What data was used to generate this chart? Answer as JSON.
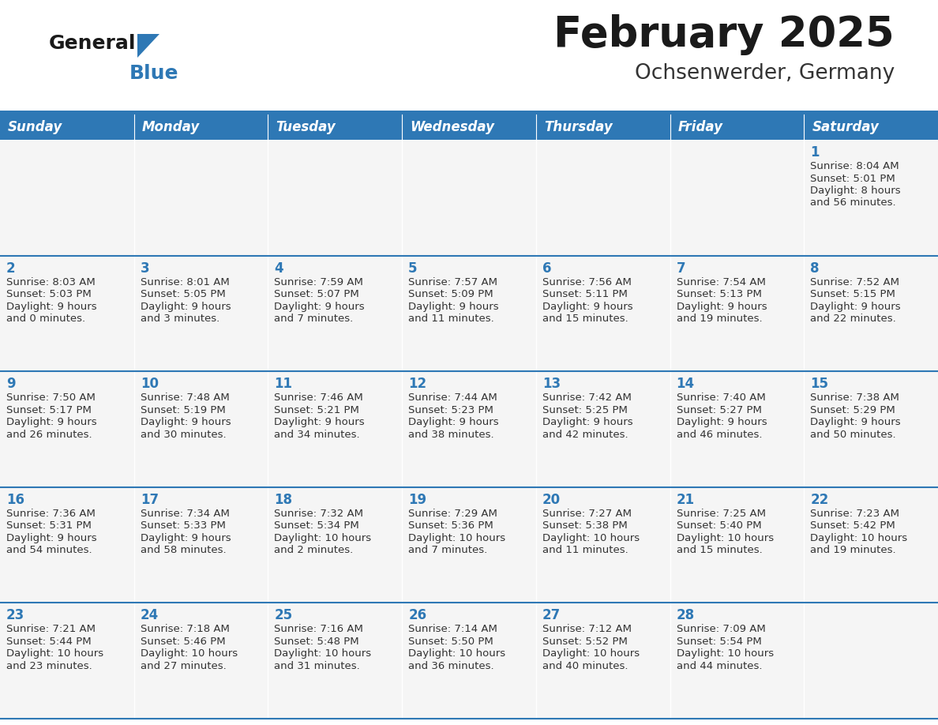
{
  "title": "February 2025",
  "subtitle": "Ochsenwerder, Germany",
  "header_bg": "#2E78B5",
  "header_text_color": "#FFFFFF",
  "cell_bg": "#F5F5F5",
  "day_number_color": "#2E78B5",
  "cell_text_color": "#333333",
  "border_color": "#2E78B5",
  "separator_color": "#CCCCCC",
  "days_of_week": [
    "Sunday",
    "Monday",
    "Tuesday",
    "Wednesday",
    "Thursday",
    "Friday",
    "Saturday"
  ],
  "calendar_data": [
    [
      {
        "day": null,
        "sunrise": null,
        "sunset": null,
        "daylight_line1": null,
        "daylight_line2": null
      },
      {
        "day": null,
        "sunrise": null,
        "sunset": null,
        "daylight_line1": null,
        "daylight_line2": null
      },
      {
        "day": null,
        "sunrise": null,
        "sunset": null,
        "daylight_line1": null,
        "daylight_line2": null
      },
      {
        "day": null,
        "sunrise": null,
        "sunset": null,
        "daylight_line1": null,
        "daylight_line2": null
      },
      {
        "day": null,
        "sunrise": null,
        "sunset": null,
        "daylight_line1": null,
        "daylight_line2": null
      },
      {
        "day": null,
        "sunrise": null,
        "sunset": null,
        "daylight_line1": null,
        "daylight_line2": null
      },
      {
        "day": 1,
        "sunrise": "8:04 AM",
        "sunset": "5:01 PM",
        "daylight_line1": "Daylight: 8 hours",
        "daylight_line2": "and 56 minutes."
      }
    ],
    [
      {
        "day": 2,
        "sunrise": "8:03 AM",
        "sunset": "5:03 PM",
        "daylight_line1": "Daylight: 9 hours",
        "daylight_line2": "and 0 minutes."
      },
      {
        "day": 3,
        "sunrise": "8:01 AM",
        "sunset": "5:05 PM",
        "daylight_line1": "Daylight: 9 hours",
        "daylight_line2": "and 3 minutes."
      },
      {
        "day": 4,
        "sunrise": "7:59 AM",
        "sunset": "5:07 PM",
        "daylight_line1": "Daylight: 9 hours",
        "daylight_line2": "and 7 minutes."
      },
      {
        "day": 5,
        "sunrise": "7:57 AM",
        "sunset": "5:09 PM",
        "daylight_line1": "Daylight: 9 hours",
        "daylight_line2": "and 11 minutes."
      },
      {
        "day": 6,
        "sunrise": "7:56 AM",
        "sunset": "5:11 PM",
        "daylight_line1": "Daylight: 9 hours",
        "daylight_line2": "and 15 minutes."
      },
      {
        "day": 7,
        "sunrise": "7:54 AM",
        "sunset": "5:13 PM",
        "daylight_line1": "Daylight: 9 hours",
        "daylight_line2": "and 19 minutes."
      },
      {
        "day": 8,
        "sunrise": "7:52 AM",
        "sunset": "5:15 PM",
        "daylight_line1": "Daylight: 9 hours",
        "daylight_line2": "and 22 minutes."
      }
    ],
    [
      {
        "day": 9,
        "sunrise": "7:50 AM",
        "sunset": "5:17 PM",
        "daylight_line1": "Daylight: 9 hours",
        "daylight_line2": "and 26 minutes."
      },
      {
        "day": 10,
        "sunrise": "7:48 AM",
        "sunset": "5:19 PM",
        "daylight_line1": "Daylight: 9 hours",
        "daylight_line2": "and 30 minutes."
      },
      {
        "day": 11,
        "sunrise": "7:46 AM",
        "sunset": "5:21 PM",
        "daylight_line1": "Daylight: 9 hours",
        "daylight_line2": "and 34 minutes."
      },
      {
        "day": 12,
        "sunrise": "7:44 AM",
        "sunset": "5:23 PM",
        "daylight_line1": "Daylight: 9 hours",
        "daylight_line2": "and 38 minutes."
      },
      {
        "day": 13,
        "sunrise": "7:42 AM",
        "sunset": "5:25 PM",
        "daylight_line1": "Daylight: 9 hours",
        "daylight_line2": "and 42 minutes."
      },
      {
        "day": 14,
        "sunrise": "7:40 AM",
        "sunset": "5:27 PM",
        "daylight_line1": "Daylight: 9 hours",
        "daylight_line2": "and 46 minutes."
      },
      {
        "day": 15,
        "sunrise": "7:38 AM",
        "sunset": "5:29 PM",
        "daylight_line1": "Daylight: 9 hours",
        "daylight_line2": "and 50 minutes."
      }
    ],
    [
      {
        "day": 16,
        "sunrise": "7:36 AM",
        "sunset": "5:31 PM",
        "daylight_line1": "Daylight: 9 hours",
        "daylight_line2": "and 54 minutes."
      },
      {
        "day": 17,
        "sunrise": "7:34 AM",
        "sunset": "5:33 PM",
        "daylight_line1": "Daylight: 9 hours",
        "daylight_line2": "and 58 minutes."
      },
      {
        "day": 18,
        "sunrise": "7:32 AM",
        "sunset": "5:34 PM",
        "daylight_line1": "Daylight: 10 hours",
        "daylight_line2": "and 2 minutes."
      },
      {
        "day": 19,
        "sunrise": "7:29 AM",
        "sunset": "5:36 PM",
        "daylight_line1": "Daylight: 10 hours",
        "daylight_line2": "and 7 minutes."
      },
      {
        "day": 20,
        "sunrise": "7:27 AM",
        "sunset": "5:38 PM",
        "daylight_line1": "Daylight: 10 hours",
        "daylight_line2": "and 11 minutes."
      },
      {
        "day": 21,
        "sunrise": "7:25 AM",
        "sunset": "5:40 PM",
        "daylight_line1": "Daylight: 10 hours",
        "daylight_line2": "and 15 minutes."
      },
      {
        "day": 22,
        "sunrise": "7:23 AM",
        "sunset": "5:42 PM",
        "daylight_line1": "Daylight: 10 hours",
        "daylight_line2": "and 19 minutes."
      }
    ],
    [
      {
        "day": 23,
        "sunrise": "7:21 AM",
        "sunset": "5:44 PM",
        "daylight_line1": "Daylight: 10 hours",
        "daylight_line2": "and 23 minutes."
      },
      {
        "day": 24,
        "sunrise": "7:18 AM",
        "sunset": "5:46 PM",
        "daylight_line1": "Daylight: 10 hours",
        "daylight_line2": "and 27 minutes."
      },
      {
        "day": 25,
        "sunrise": "7:16 AM",
        "sunset": "5:48 PM",
        "daylight_line1": "Daylight: 10 hours",
        "daylight_line2": "and 31 minutes."
      },
      {
        "day": 26,
        "sunrise": "7:14 AM",
        "sunset": "5:50 PM",
        "daylight_line1": "Daylight: 10 hours",
        "daylight_line2": "and 36 minutes."
      },
      {
        "day": 27,
        "sunrise": "7:12 AM",
        "sunset": "5:52 PM",
        "daylight_line1": "Daylight: 10 hours",
        "daylight_line2": "and 40 minutes."
      },
      {
        "day": 28,
        "sunrise": "7:09 AM",
        "sunset": "5:54 PM",
        "daylight_line1": "Daylight: 10 hours",
        "daylight_line2": "and 44 minutes."
      },
      {
        "day": null,
        "sunrise": null,
        "sunset": null,
        "daylight_line1": null,
        "daylight_line2": null
      }
    ]
  ],
  "title_fontsize": 38,
  "subtitle_fontsize": 19,
  "header_fontsize": 12,
  "day_number_fontsize": 12,
  "cell_text_fontsize": 9.5
}
